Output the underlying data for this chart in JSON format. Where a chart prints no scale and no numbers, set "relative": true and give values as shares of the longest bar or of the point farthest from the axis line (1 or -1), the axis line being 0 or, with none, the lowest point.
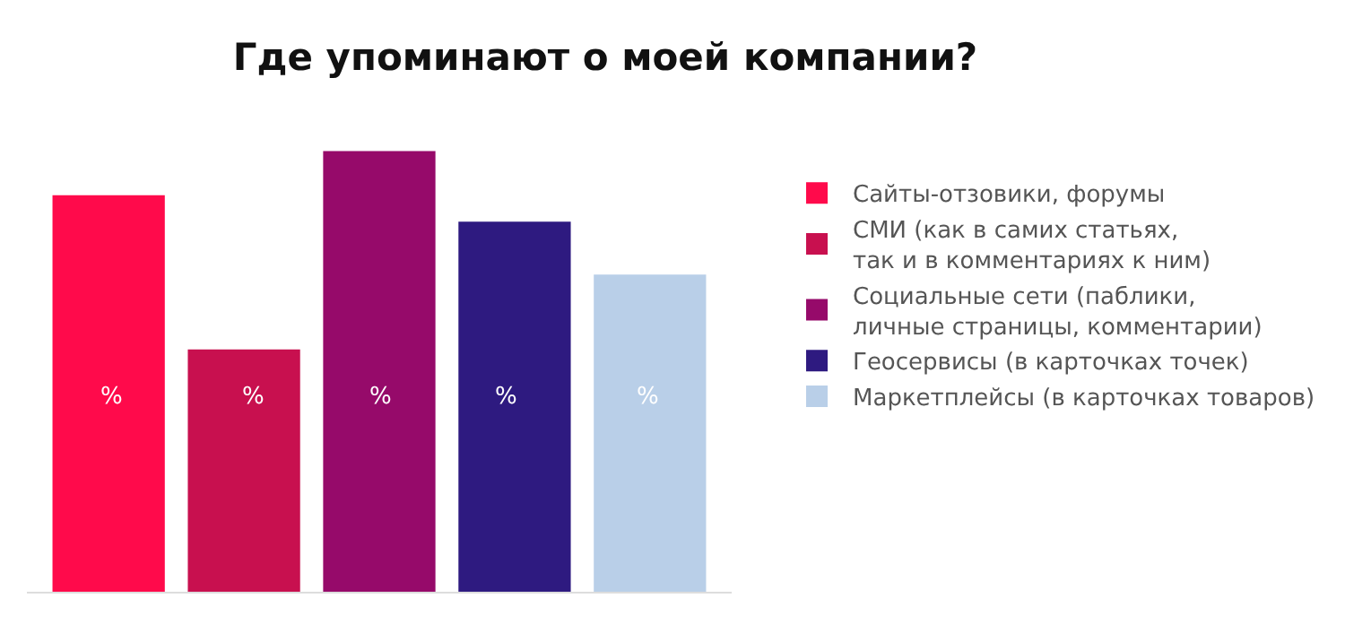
{
  "chart_data": {
    "type": "bar",
    "title": "Где упоминают о моей компании?",
    "relative": true,
    "categories": [
      null
    ],
    "legend": "right",
    "annotations": [
      "%",
      "%",
      "%",
      "%",
      "%"
    ],
    "series": [
      {
        "name": "Сайты-отзовики, форумы",
        "color": "#ff0a4b",
        "values": [
          0.9
        ]
      },
      {
        "name": "СМИ (как в самих статьях,\nтак и в комментариях к ним)",
        "color": "#c8104f",
        "values": [
          0.55
        ]
      },
      {
        "name": "Социальные сети (паблики,\nличные страницы, комментарии)",
        "color": "#960a6a",
        "values": [
          1
        ]
      },
      {
        "name": "Геосервисы (в карточках точек)",
        "color": "#2e1a80",
        "values": [
          0.84
        ]
      },
      {
        "name": "Маркетплейсы (в карточках товаров)",
        "color": "#b9cfe8",
        "values": [
          0.72
        ]
      }
    ]
  }
}
